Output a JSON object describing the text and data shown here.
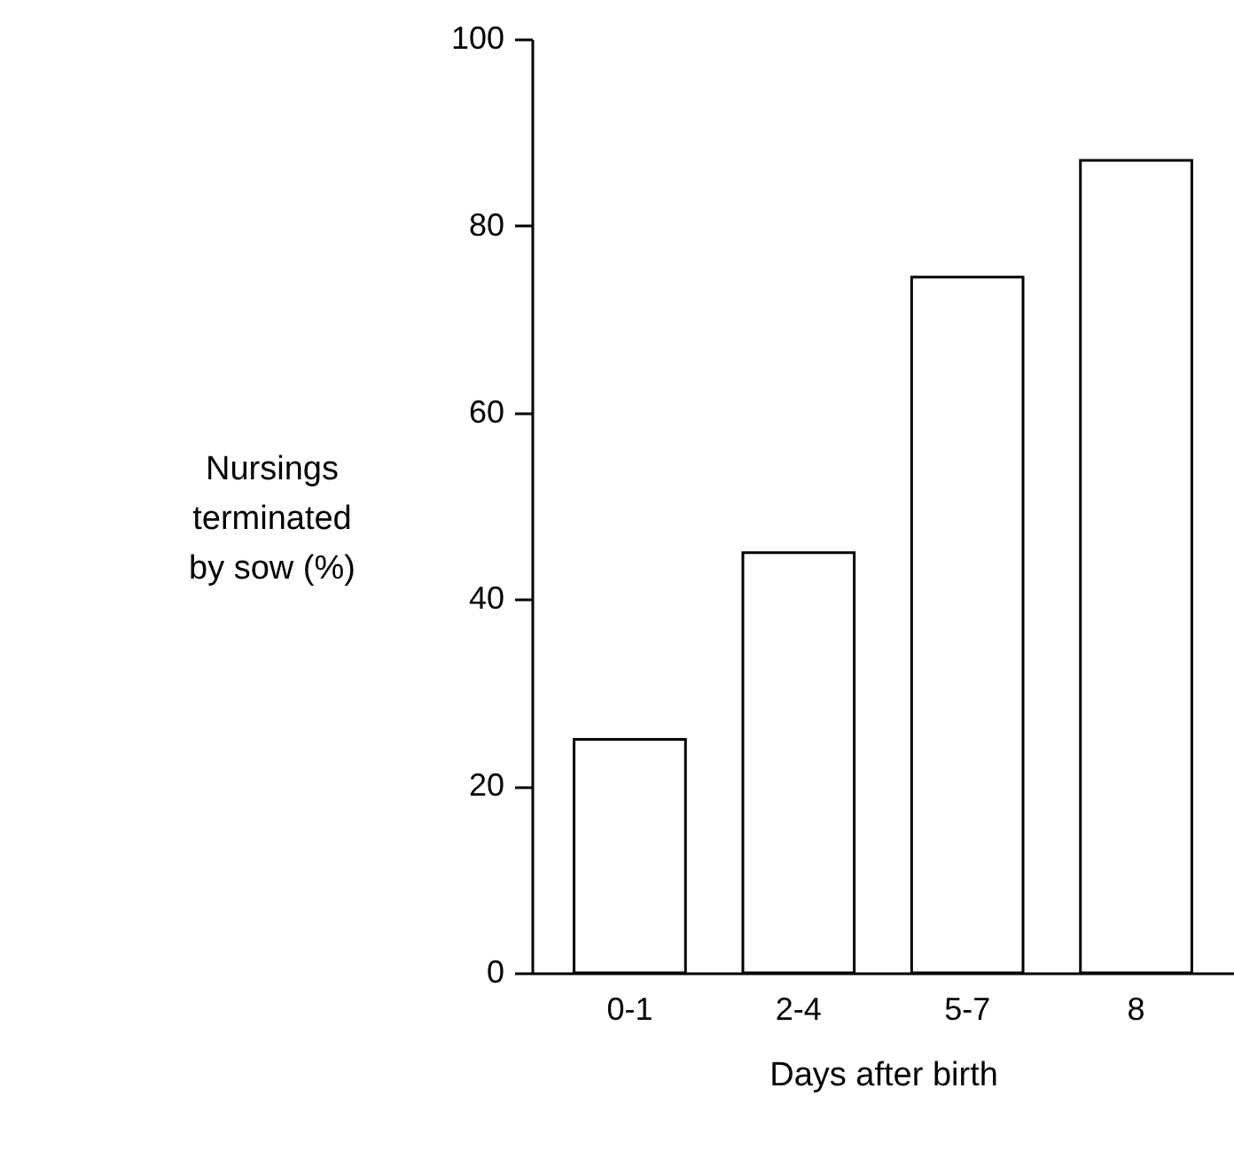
{
  "chart_data": {
    "type": "bar",
    "xlabel": "Days after birth",
    "ylabel": "Nursings\nterminated\nby sow (%)",
    "categories": [
      "0-1",
      "2-4",
      "5-7",
      "8"
    ],
    "values": [
      25,
      45,
      74.5,
      87
    ],
    "color": "#ffffff",
    "ylim": [
      0,
      100
    ],
    "yticks": [
      0,
      20,
      40,
      60,
      80,
      100
    ],
    "grid": false
  }
}
